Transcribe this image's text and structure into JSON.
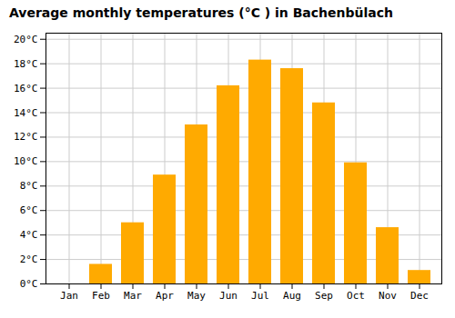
{
  "chart_data": {
    "type": "bar",
    "title": "Average monthly temperatures (°C ) in Bachenbülach",
    "categories": [
      "Jan",
      "Feb",
      "Mar",
      "Apr",
      "May",
      "Jun",
      "Jul",
      "Aug",
      "Sep",
      "Oct",
      "Nov",
      "Dec"
    ],
    "values": [
      0.0,
      1.6,
      5.0,
      8.9,
      13.0,
      16.2,
      18.3,
      17.6,
      14.8,
      9.9,
      4.6,
      1.1
    ],
    "color": "#FFAA00",
    "ylim": [
      0,
      20.5
    ],
    "yticks": [
      {
        "value": 0,
        "label": "0°C"
      },
      {
        "value": 2,
        "label": "2°C"
      },
      {
        "value": 4,
        "label": "4°C"
      },
      {
        "value": 6,
        "label": "6°C"
      },
      {
        "value": 8,
        "label": "8°C"
      },
      {
        "value": 10,
        "label": "10°C"
      },
      {
        "value": 12,
        "label": "12°C"
      },
      {
        "value": 14,
        "label": "14°C"
      },
      {
        "value": 16,
        "label": "16°C"
      },
      {
        "value": 18,
        "label": "18°C"
      },
      {
        "value": 20,
        "label": "20°C"
      }
    ],
    "grid": true
  }
}
